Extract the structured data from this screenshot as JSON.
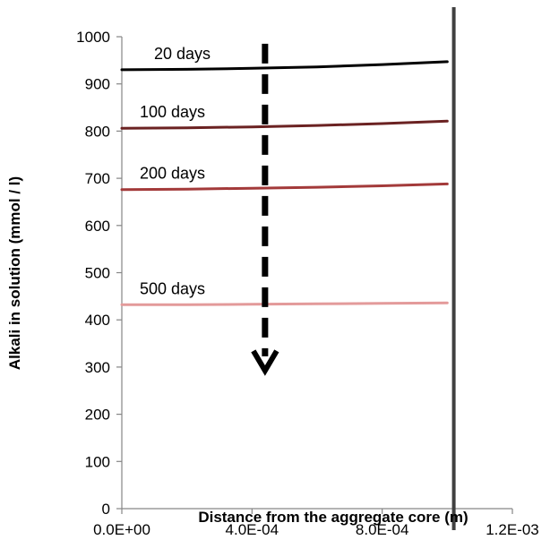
{
  "chart_data": {
    "type": "line",
    "title": "",
    "xlabel": "Distance from the aggregate core (m)",
    "ylabel": "Alkali in solution (mmol / l)",
    "xlim": [
      0,
      0.0012
    ],
    "ylim": [
      0,
      1000
    ],
    "x_ticks": [
      0,
      0.0004,
      0.0008,
      0.0012
    ],
    "x_tick_labels": [
      "0.0E+00",
      "4.0E-04",
      "8.0E-04",
      "1.2E-03"
    ],
    "y_ticks": [
      0,
      100,
      200,
      300,
      400,
      500,
      600,
      700,
      800,
      900,
      1000
    ],
    "y_tick_labels": [
      "0",
      "100",
      "200",
      "300",
      "400",
      "500",
      "600",
      "700",
      "800",
      "900",
      "1000"
    ],
    "grid": false,
    "legend": "none",
    "series": [
      {
        "name": "20 days",
        "color": "#000000",
        "x": [
          0,
          0.0002,
          0.0004,
          0.0006,
          0.0008,
          0.001
        ],
        "y": [
          930,
          931,
          933,
          936,
          941,
          947
        ]
      },
      {
        "name": "100 days",
        "color": "#6b2222",
        "x": [
          0,
          0.0002,
          0.0004,
          0.0006,
          0.0008,
          0.001
        ],
        "y": [
          806,
          807,
          809,
          812,
          816,
          821
        ]
      },
      {
        "name": "200 days",
        "color": "#a33a3a",
        "x": [
          0,
          0.0002,
          0.0004,
          0.0006,
          0.0008,
          0.001
        ],
        "y": [
          676,
          677,
          679,
          681,
          684,
          688
        ]
      },
      {
        "name": "500 days",
        "color": "#e39a9a",
        "x": [
          0,
          0.0002,
          0.0004,
          0.0006,
          0.0008,
          0.001
        ],
        "y": [
          432,
          432,
          433,
          434,
          435,
          436
        ]
      }
    ],
    "annotations": [
      {
        "type": "dashed-arrow",
        "description": "trend downward with time",
        "x": 0.00044,
        "y_from": 985,
        "y_to": 300,
        "color": "#000000"
      },
      {
        "type": "vertical-line",
        "x": 0.00102,
        "color": "#404040"
      }
    ]
  }
}
